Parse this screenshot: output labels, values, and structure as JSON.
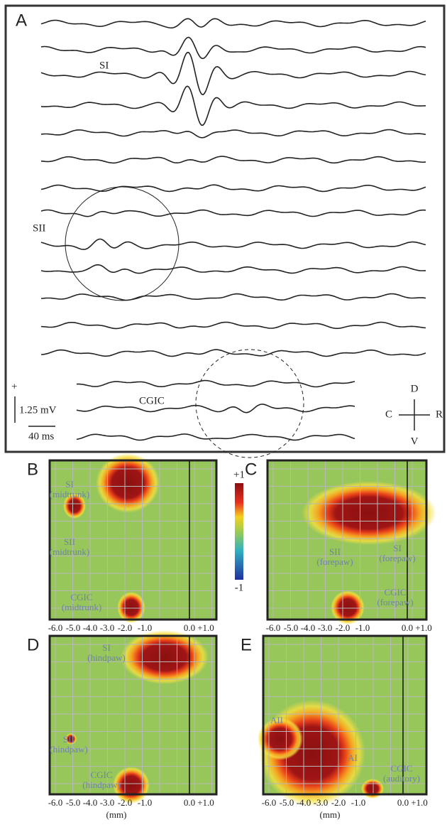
{
  "panel_a": {
    "label": "A",
    "regions": [
      "SI",
      "SII",
      "CGIC"
    ],
    "scale_plus": "+",
    "scale_voltage": "1.25 mV",
    "scale_time": "40 ms",
    "compass": {
      "up": "D",
      "left": "C",
      "right": "R",
      "down": "V"
    }
  },
  "colorbar": {
    "max_label": "+1",
    "min_label": "-1"
  },
  "maps": [
    {
      "label": "B",
      "regions": [
        {
          "lines": [
            "SI",
            "(midtrunk)"
          ]
        },
        {
          "lines": [
            "SII",
            "(midtrunk)"
          ]
        },
        {
          "lines": [
            "CGIC",
            "(midtrunk)"
          ]
        }
      ],
      "x_ticks": [
        "-6.0",
        "-5.0",
        "-4.0",
        "-3.0",
        "-2.0",
        "-1.0",
        "0.0",
        "+1.0"
      ]
    },
    {
      "label": "C",
      "regions": [
        {
          "lines": [
            "SI",
            "(forepaw)"
          ]
        },
        {
          "lines": [
            "SII",
            "(forepaw)"
          ]
        },
        {
          "lines": [
            "CGIC",
            "(forepaw)"
          ]
        }
      ],
      "x_ticks": [
        "-6.0",
        "-5.0",
        "-4.0",
        "-3.0",
        "-2.0",
        "-1.0",
        "0.0",
        "+1.0"
      ]
    },
    {
      "label": "D",
      "regions": [
        {
          "lines": [
            "SI",
            "(hindpaw)"
          ]
        },
        {
          "lines": [
            "SII",
            "(hindpaw)"
          ]
        },
        {
          "lines": [
            "CGIC",
            "(hindpaw)"
          ]
        }
      ],
      "x_ticks": [
        "-6.0",
        "-5.0",
        "-4.0",
        "-3.0",
        "-2.0",
        "-1.0",
        "0.0",
        "+1.0"
      ],
      "x_unit": "(mm)"
    },
    {
      "label": "E",
      "regions": [
        {
          "lines": [
            "AII"
          ]
        },
        {
          "lines": [
            "AI"
          ]
        },
        {
          "lines": [
            "CGIC",
            "(auditory)"
          ]
        }
      ],
      "x_ticks": [
        "-6.0",
        "-5.0",
        "-4.0",
        "-3.0",
        "-2.0",
        "-1.0",
        "0.0",
        "+1.0"
      ],
      "x_unit": "(mm)"
    }
  ]
}
